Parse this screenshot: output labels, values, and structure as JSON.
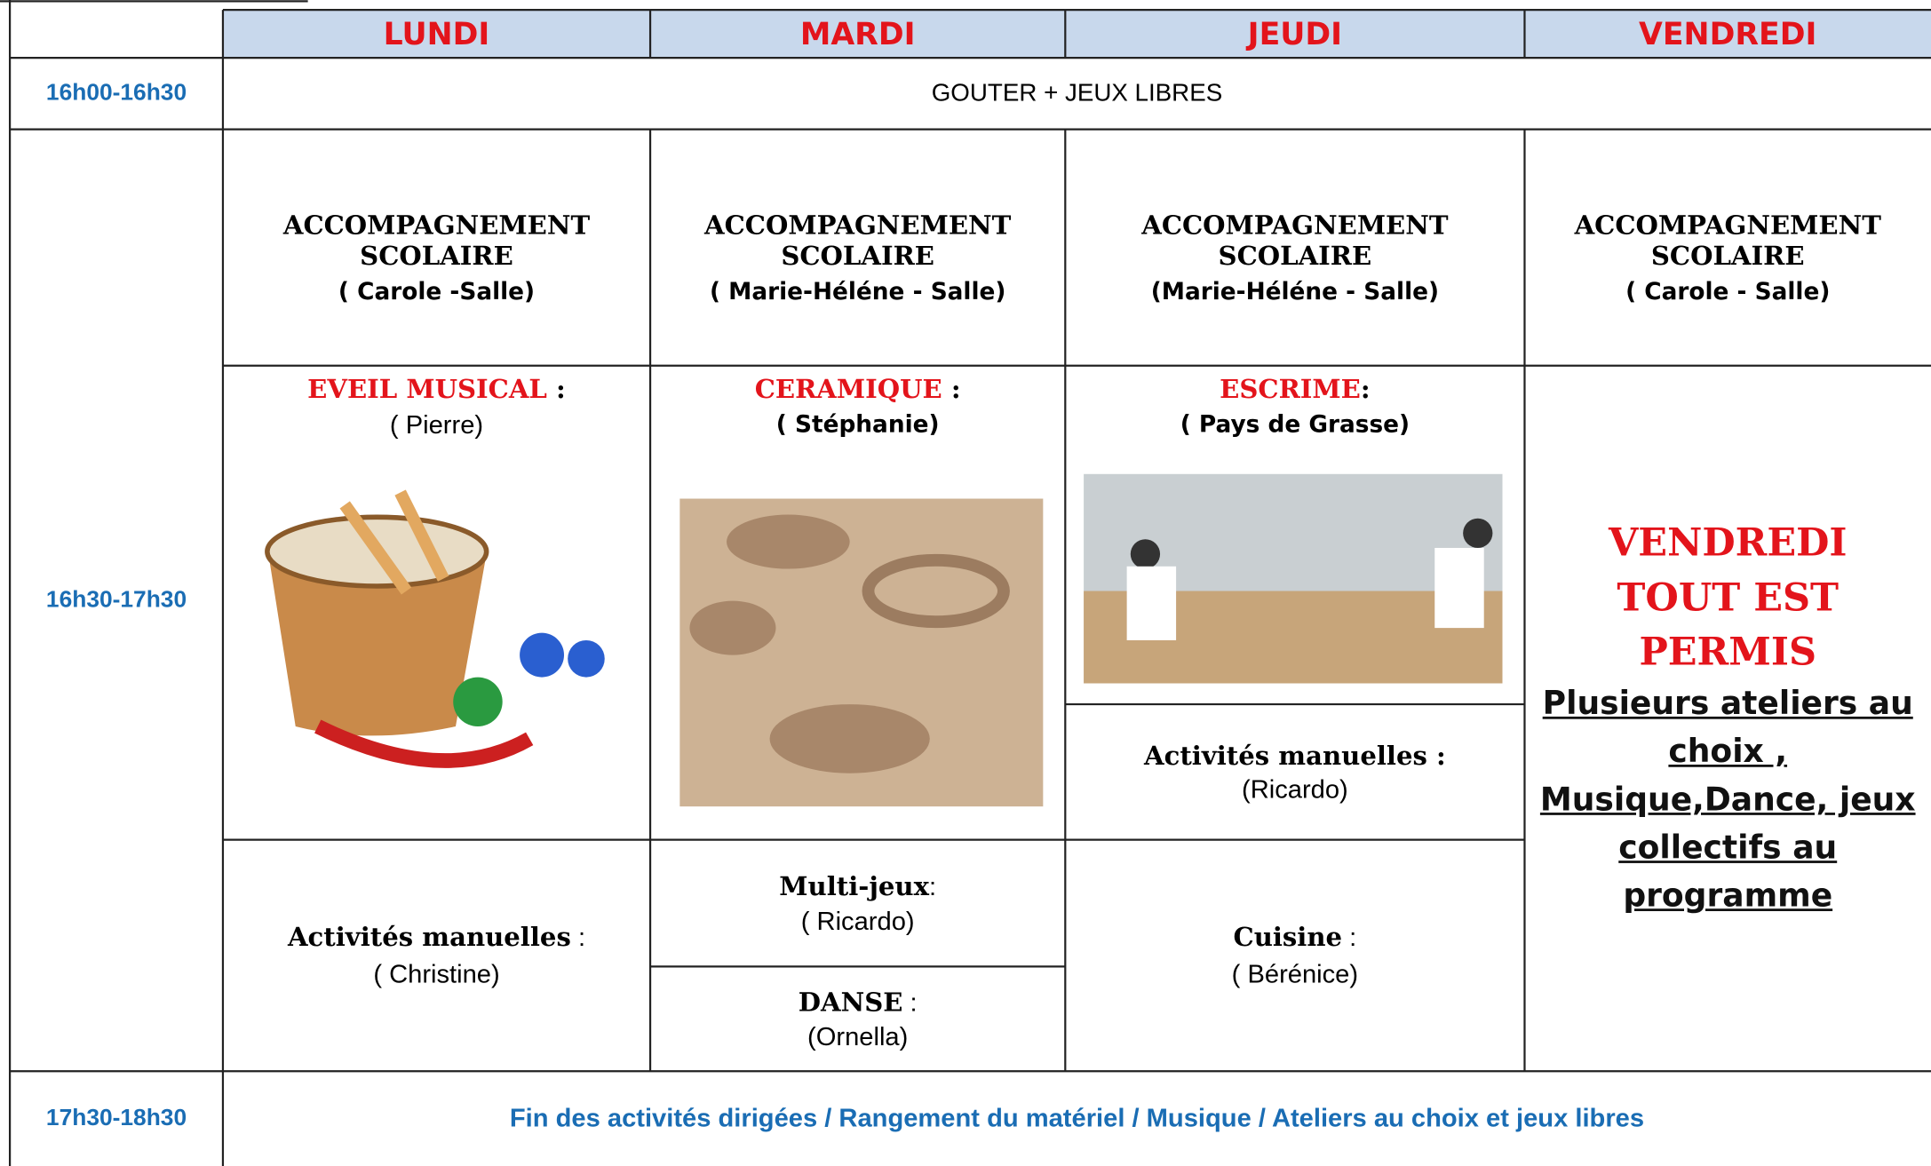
{
  "header": {
    "days": [
      "LUNDI",
      "MARDI",
      "JEUDI",
      "VENDREDI"
    ]
  },
  "slots": [
    {
      "time": "16h00-16h30",
      "text": "GOUTER + JEUX LIBRES"
    },
    {
      "time": "16h30-17h30"
    },
    {
      "time": "17h30-18h30",
      "text": "Fin des activités dirigées / Rangement du matériel / Musique /  Ateliers au choix et jeux libres"
    }
  ],
  "accompagnement": [
    {
      "title": "ACCOMPAGNEMENT SCOLAIRE",
      "who": "( Carole -Salle)"
    },
    {
      "title": "ACCOMPAGNEMENT SCOLAIRE",
      "who": "( Marie-Héléne - Salle)"
    },
    {
      "title": "ACCOMPAGNEMENT SCOLAIRE",
      "who": "(Marie-Héléne - Salle)"
    },
    {
      "title": "ACCOMPAGNEMENT SCOLAIRE",
      "who": "( Carole - Salle)"
    }
  ],
  "lundi": [
    {
      "title": "EVEIL MUSICAL",
      "sep": " :",
      "who": "( Pierre)"
    },
    {
      "title": "Activités manuelles",
      "sep": " :",
      "who": "( Christine)"
    }
  ],
  "mardi": [
    {
      "title": "CERAMIQUE",
      "sep": " :",
      "who": "( Stéphanie)"
    },
    {
      "title": "Multi-jeux",
      "sep": ":",
      "who": "( Ricardo)"
    },
    {
      "title": "DANSE",
      "sep": " :",
      "who": "(Ornella)"
    }
  ],
  "jeudi": [
    {
      "title": "ESCRIME",
      "sep": ":",
      "who": "( Pays de Grasse)"
    },
    {
      "title": "Activités manuelles :",
      "who": "(Ricardo)"
    },
    {
      "title": "Cuisine",
      "sep": " :",
      "who": "( Bérénice)"
    }
  ],
  "vendredi": {
    "title": "VENDREDI TOUT EST PERMIS",
    "text": "Plusieurs ateliers au choix , Musique,Dance, jeux collectifs au programme"
  }
}
